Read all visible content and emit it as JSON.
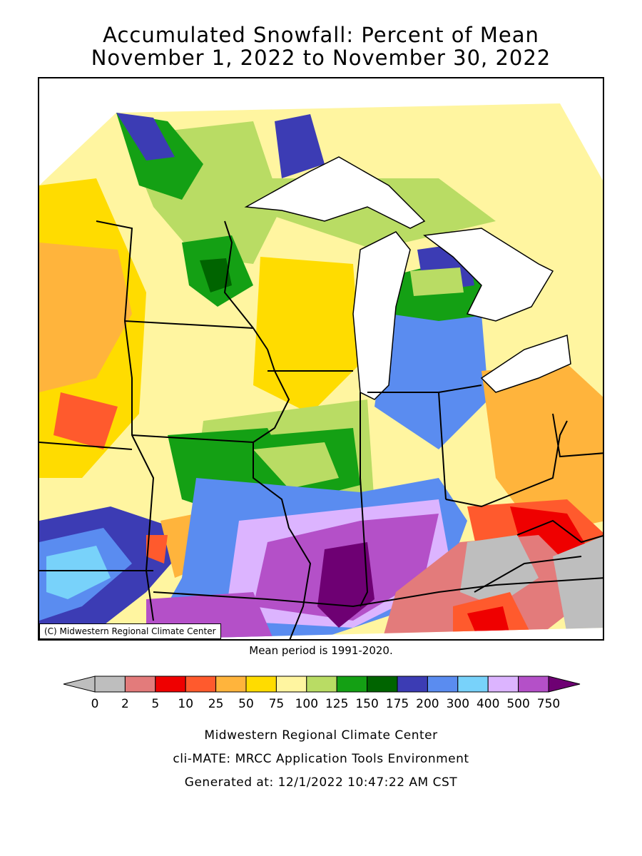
{
  "title": {
    "line1": "Accumulated Snowfall: Percent of Mean",
    "line2": "November 1, 2022 to November 30, 2022"
  },
  "map": {
    "copyright": "(C) Midwestern Regional Climate Center",
    "mean_period": "Mean period is 1991-2020."
  },
  "legend": {
    "labels": [
      "0",
      "2",
      "5",
      "10",
      "25",
      "50",
      "75",
      "100",
      "125",
      "150",
      "175",
      "200",
      "300",
      "400",
      "500",
      "750"
    ],
    "colors": [
      "#bebebe",
      "#e37b7b",
      "#ef0000",
      "#ff5a2d",
      "#ffb43c",
      "#ffdc00",
      "#fff5a0",
      "#b9dc64",
      "#14a014",
      "#006400",
      "#3c3cb4",
      "#5a8cf0",
      "#78d2fa",
      "#dcb4ff",
      "#b450c8",
      "#6e0073"
    ],
    "low_arrow_color": "#bebebe",
    "high_arrow_color": "#6e0073"
  },
  "footer": {
    "line1": "Midwestern Regional Climate Center",
    "line2": "cli-MATE: MRCC Application Tools Environment",
    "line3": "Generated at: 12/1/2022 10:47:22 AM CST"
  }
}
